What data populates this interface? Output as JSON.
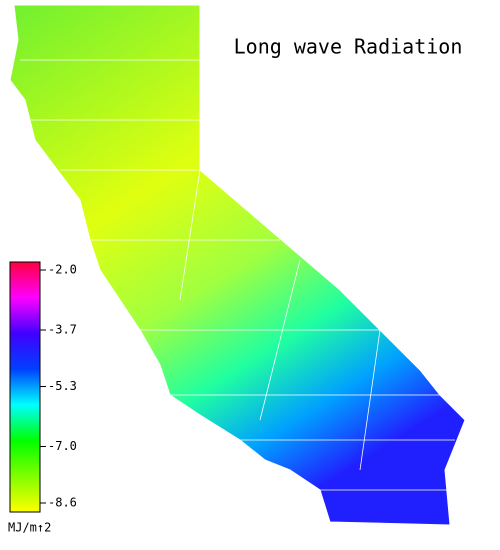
{
  "title": "Long wave Radiation",
  "colorbar": {
    "unit": "MJ/m↑2",
    "range": [
      -8.6,
      -2.0
    ],
    "ticks": [
      {
        "value": -2.0,
        "label": "-2.0"
      },
      {
        "value": -3.7,
        "label": "-3.7"
      },
      {
        "value": -5.3,
        "label": "-5.3"
      },
      {
        "value": -7.0,
        "label": "-7.0"
      },
      {
        "value": -8.6,
        "label": "-8.6"
      }
    ],
    "colors": [
      "#ffff00",
      "#80ff00",
      "#00ff00",
      "#00ffff",
      "#0040ff",
      "#4000ff",
      "#ff00ff",
      "#ff0040"
    ]
  }
}
